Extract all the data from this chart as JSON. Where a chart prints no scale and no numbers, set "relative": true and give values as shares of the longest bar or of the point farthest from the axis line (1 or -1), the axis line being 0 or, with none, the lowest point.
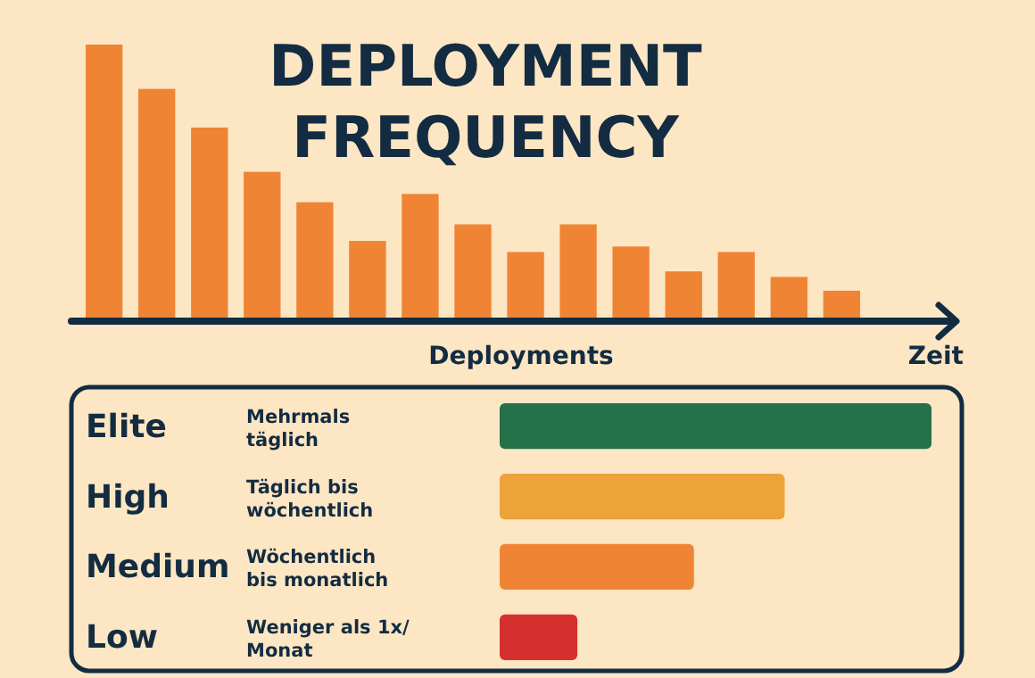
{
  "chart_data": [
    {
      "type": "bar",
      "title": "DEPLOYMENT FREQUENCY",
      "xlabel": "Deployments",
      "annotations": [
        "Zeit"
      ],
      "relative": true,
      "color": "#ef8434",
      "categories": [
        null,
        null,
        null,
        null,
        null,
        null,
        null,
        null,
        null,
        null,
        null,
        null,
        null,
        null,
        null
      ],
      "values": [
        1,
        0.84,
        0.7,
        0.54,
        0.43,
        0.29,
        0.46,
        0.35,
        0.25,
        0.35,
        0.27,
        0.18,
        0.25,
        0.16,
        0.11
      ]
    },
    {
      "type": "bar",
      "orientation": "horizontal",
      "relative": true,
      "categories": [
        "Elite",
        "High",
        "Medium",
        "Low"
      ],
      "values": [
        1,
        0.66,
        0.45,
        0.18
      ],
      "colors": [
        "#24714a",
        "#eca33a",
        "#ef8434",
        "#d6302e"
      ],
      "annotations": [
        "Mehrmals\ntäglich",
        "Täglich bis\nwöchentlich",
        "Wöchentlich\nbis monatlich",
        "Weniger als 1x/\nMonat"
      ]
    }
  ]
}
